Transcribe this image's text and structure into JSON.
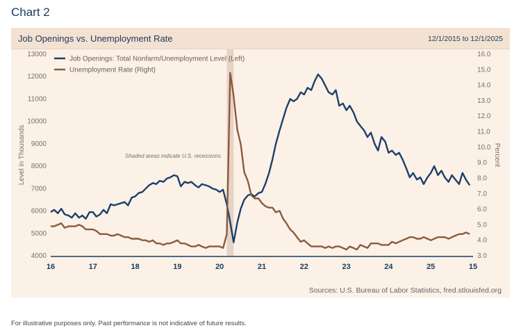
{
  "heading": "Chart 2",
  "panel": {
    "title": "Job Openings vs. Unemployment Rate",
    "date_range": "12/1/2015 to 12/1/2025",
    "source": "Sources: U.S. Bureau of Labor Statistics, fred.stlouisfed.org"
  },
  "footnote": "For illustrative purposes only. Past performance is not indicative of future results.",
  "colors": {
    "job_openings": "#1b3f6b",
    "unemployment": "#8b5a3c",
    "recession": "#e6d3c6",
    "panel_bg": "#fbf1e7"
  },
  "chart_data": {
    "type": "line",
    "xlabel": "",
    "ylabel_left": "Level in Thousands",
    "ylabel_right": "Percent",
    "x_ticks": [
      "16",
      "17",
      "18",
      "19",
      "20",
      "21",
      "22",
      "23",
      "24",
      "25",
      "15"
    ],
    "xlim": [
      2016.0,
      2026.0
    ],
    "ylim_left": [
      4000,
      13000
    ],
    "ylim_right": [
      3.0,
      16.0
    ],
    "left_ticks": [
      "4000",
      "5000",
      "6000",
      "7000",
      "8000",
      "9000",
      "10000",
      "11000",
      "12000",
      "13000"
    ],
    "right_ticks": [
      "3.0",
      "4.0",
      "5.0",
      "6.0",
      "7.0",
      "8.0",
      "9.0",
      "10.0",
      "11.0",
      "12.0",
      "13.0",
      "14.0",
      "15.0",
      "16.0"
    ],
    "annotation": "Shaded areas indicate U.S. recessions",
    "recession": {
      "start": 2020.17,
      "end": 2020.33
    },
    "legend_position": "top-left",
    "series": [
      {
        "name": "Job Openings: Total Nonfarm/Unemployment Level (Left)",
        "axis": "left",
        "points": [
          [
            2016.0,
            5950
          ],
          [
            2016.08,
            6050
          ],
          [
            2016.17,
            5900
          ],
          [
            2016.25,
            6100
          ],
          [
            2016.33,
            5850
          ],
          [
            2016.42,
            5800
          ],
          [
            2016.5,
            5700
          ],
          [
            2016.58,
            5900
          ],
          [
            2016.67,
            5700
          ],
          [
            2016.75,
            5800
          ],
          [
            2016.83,
            5650
          ],
          [
            2016.92,
            5950
          ],
          [
            2017.0,
            5950
          ],
          [
            2017.08,
            5750
          ],
          [
            2017.17,
            5850
          ],
          [
            2017.25,
            6050
          ],
          [
            2017.33,
            5900
          ],
          [
            2017.42,
            6300
          ],
          [
            2017.5,
            6250
          ],
          [
            2017.58,
            6300
          ],
          [
            2017.67,
            6350
          ],
          [
            2017.75,
            6400
          ],
          [
            2017.83,
            6250
          ],
          [
            2017.92,
            6600
          ],
          [
            2018.0,
            6650
          ],
          [
            2018.08,
            6800
          ],
          [
            2018.17,
            6850
          ],
          [
            2018.25,
            7000
          ],
          [
            2018.33,
            7150
          ],
          [
            2018.42,
            7250
          ],
          [
            2018.5,
            7200
          ],
          [
            2018.58,
            7350
          ],
          [
            2018.67,
            7300
          ],
          [
            2018.75,
            7450
          ],
          [
            2018.83,
            7500
          ],
          [
            2018.92,
            7600
          ],
          [
            2019.0,
            7550
          ],
          [
            2019.08,
            7100
          ],
          [
            2019.17,
            7300
          ],
          [
            2019.25,
            7250
          ],
          [
            2019.33,
            7300
          ],
          [
            2019.42,
            7150
          ],
          [
            2019.5,
            7050
          ],
          [
            2019.58,
            7200
          ],
          [
            2019.67,
            7150
          ],
          [
            2019.75,
            7100
          ],
          [
            2019.83,
            7000
          ],
          [
            2019.92,
            6950
          ],
          [
            2020.0,
            6850
          ],
          [
            2020.08,
            6950
          ],
          [
            2020.17,
            6300
          ],
          [
            2020.25,
            5500
          ],
          [
            2020.33,
            4600
          ],
          [
            2020.42,
            5500
          ],
          [
            2020.5,
            6100
          ],
          [
            2020.58,
            6500
          ],
          [
            2020.67,
            6700
          ],
          [
            2020.75,
            6750
          ],
          [
            2020.83,
            6650
          ],
          [
            2020.92,
            6800
          ],
          [
            2021.0,
            6850
          ],
          [
            2021.08,
            7200
          ],
          [
            2021.17,
            7700
          ],
          [
            2021.25,
            8300
          ],
          [
            2021.33,
            9000
          ],
          [
            2021.42,
            9600
          ],
          [
            2021.5,
            10100
          ],
          [
            2021.58,
            10600
          ],
          [
            2021.67,
            11000
          ],
          [
            2021.75,
            10900
          ],
          [
            2021.83,
            11000
          ],
          [
            2021.92,
            11300
          ],
          [
            2022.0,
            11200
          ],
          [
            2022.08,
            11500
          ],
          [
            2022.17,
            11400
          ],
          [
            2022.25,
            11800
          ],
          [
            2022.33,
            12100
          ],
          [
            2022.42,
            11900
          ],
          [
            2022.5,
            11600
          ],
          [
            2022.58,
            11300
          ],
          [
            2022.67,
            11200
          ],
          [
            2022.75,
            11400
          ],
          [
            2022.83,
            10700
          ],
          [
            2022.92,
            10800
          ],
          [
            2023.0,
            10500
          ],
          [
            2023.08,
            10700
          ],
          [
            2023.17,
            10400
          ],
          [
            2023.25,
            10000
          ],
          [
            2023.33,
            9800
          ],
          [
            2023.42,
            9600
          ],
          [
            2023.5,
            9300
          ],
          [
            2023.58,
            9500
          ],
          [
            2023.67,
            9000
          ],
          [
            2023.75,
            8700
          ],
          [
            2023.83,
            9300
          ],
          [
            2023.92,
            9100
          ],
          [
            2024.0,
            8600
          ],
          [
            2024.08,
            8700
          ],
          [
            2024.17,
            8500
          ],
          [
            2024.25,
            8600
          ],
          [
            2024.33,
            8300
          ],
          [
            2024.42,
            7900
          ],
          [
            2024.5,
            7500
          ],
          [
            2024.58,
            7700
          ],
          [
            2024.67,
            7400
          ],
          [
            2024.75,
            7500
          ],
          [
            2024.83,
            7200
          ],
          [
            2024.92,
            7500
          ],
          [
            2025.0,
            7700
          ],
          [
            2025.08,
            8000
          ],
          [
            2025.17,
            7600
          ],
          [
            2025.25,
            7800
          ],
          [
            2025.33,
            7500
          ],
          [
            2025.42,
            7300
          ],
          [
            2025.5,
            7600
          ],
          [
            2025.58,
            7400
          ],
          [
            2025.67,
            7200
          ],
          [
            2025.75,
            7700
          ],
          [
            2025.83,
            7400
          ],
          [
            2025.92,
            7150
          ]
        ]
      },
      {
        "name": "Unemployment Rate (Right)",
        "axis": "right",
        "points": [
          [
            2016.0,
            4.9
          ],
          [
            2016.08,
            4.9
          ],
          [
            2016.17,
            5.0
          ],
          [
            2016.25,
            5.1
          ],
          [
            2016.33,
            4.8
          ],
          [
            2016.42,
            4.9
          ],
          [
            2016.5,
            4.9
          ],
          [
            2016.58,
            4.9
          ],
          [
            2016.67,
            5.0
          ],
          [
            2016.75,
            4.9
          ],
          [
            2016.83,
            4.7
          ],
          [
            2016.92,
            4.7
          ],
          [
            2017.0,
            4.7
          ],
          [
            2017.08,
            4.6
          ],
          [
            2017.17,
            4.4
          ],
          [
            2017.25,
            4.4
          ],
          [
            2017.33,
            4.4
          ],
          [
            2017.42,
            4.3
          ],
          [
            2017.5,
            4.3
          ],
          [
            2017.58,
            4.4
          ],
          [
            2017.67,
            4.3
          ],
          [
            2017.75,
            4.2
          ],
          [
            2017.83,
            4.2
          ],
          [
            2017.92,
            4.1
          ],
          [
            2018.0,
            4.1
          ],
          [
            2018.08,
            4.1
          ],
          [
            2018.17,
            4.0
          ],
          [
            2018.25,
            4.0
          ],
          [
            2018.33,
            3.9
          ],
          [
            2018.42,
            4.0
          ],
          [
            2018.5,
            3.8
          ],
          [
            2018.58,
            3.8
          ],
          [
            2018.67,
            3.7
          ],
          [
            2018.75,
            3.8
          ],
          [
            2018.83,
            3.8
          ],
          [
            2018.92,
            3.9
          ],
          [
            2019.0,
            4.0
          ],
          [
            2019.08,
            3.8
          ],
          [
            2019.17,
            3.8
          ],
          [
            2019.25,
            3.7
          ],
          [
            2019.33,
            3.6
          ],
          [
            2019.42,
            3.6
          ],
          [
            2019.5,
            3.7
          ],
          [
            2019.58,
            3.6
          ],
          [
            2019.67,
            3.5
          ],
          [
            2019.75,
            3.6
          ],
          [
            2019.83,
            3.6
          ],
          [
            2019.92,
            3.6
          ],
          [
            2020.0,
            3.6
          ],
          [
            2020.08,
            3.5
          ],
          [
            2020.17,
            4.4
          ],
          [
            2020.25,
            14.8
          ],
          [
            2020.33,
            13.3
          ],
          [
            2020.42,
            11.1
          ],
          [
            2020.5,
            10.2
          ],
          [
            2020.58,
            8.4
          ],
          [
            2020.67,
            7.8
          ],
          [
            2020.75,
            6.9
          ],
          [
            2020.83,
            6.7
          ],
          [
            2020.92,
            6.7
          ],
          [
            2021.0,
            6.4
          ],
          [
            2021.08,
            6.2
          ],
          [
            2021.17,
            6.1
          ],
          [
            2021.25,
            6.1
          ],
          [
            2021.33,
            5.8
          ],
          [
            2021.42,
            5.9
          ],
          [
            2021.5,
            5.4
          ],
          [
            2021.58,
            5.1
          ],
          [
            2021.67,
            4.7
          ],
          [
            2021.75,
            4.5
          ],
          [
            2021.83,
            4.2
          ],
          [
            2021.92,
            3.9
          ],
          [
            2022.0,
            4.0
          ],
          [
            2022.08,
            3.8
          ],
          [
            2022.17,
            3.6
          ],
          [
            2022.25,
            3.6
          ],
          [
            2022.33,
            3.6
          ],
          [
            2022.42,
            3.6
          ],
          [
            2022.5,
            3.5
          ],
          [
            2022.58,
            3.6
          ],
          [
            2022.67,
            3.5
          ],
          [
            2022.75,
            3.6
          ],
          [
            2022.83,
            3.6
          ],
          [
            2022.92,
            3.5
          ],
          [
            2023.0,
            3.4
          ],
          [
            2023.08,
            3.6
          ],
          [
            2023.17,
            3.5
          ],
          [
            2023.25,
            3.4
          ],
          [
            2023.33,
            3.7
          ],
          [
            2023.42,
            3.6
          ],
          [
            2023.5,
            3.5
          ],
          [
            2023.58,
            3.8
          ],
          [
            2023.67,
            3.8
          ],
          [
            2023.75,
            3.8
          ],
          [
            2023.83,
            3.7
          ],
          [
            2023.92,
            3.7
          ],
          [
            2024.0,
            3.7
          ],
          [
            2024.08,
            3.9
          ],
          [
            2024.17,
            3.8
          ],
          [
            2024.25,
            3.9
          ],
          [
            2024.33,
            4.0
          ],
          [
            2024.42,
            4.1
          ],
          [
            2024.5,
            4.2
          ],
          [
            2024.58,
            4.2
          ],
          [
            2024.67,
            4.1
          ],
          [
            2024.75,
            4.1
          ],
          [
            2024.83,
            4.2
          ],
          [
            2024.92,
            4.1
          ],
          [
            2025.0,
            4.0
          ],
          [
            2025.08,
            4.1
          ],
          [
            2025.17,
            4.2
          ],
          [
            2025.25,
            4.2
          ],
          [
            2025.33,
            4.2
          ],
          [
            2025.42,
            4.1
          ],
          [
            2025.5,
            4.2
          ],
          [
            2025.58,
            4.3
          ],
          [
            2025.67,
            4.4
          ],
          [
            2025.75,
            4.4
          ],
          [
            2025.83,
            4.5
          ],
          [
            2025.92,
            4.4
          ]
        ]
      }
    ]
  }
}
